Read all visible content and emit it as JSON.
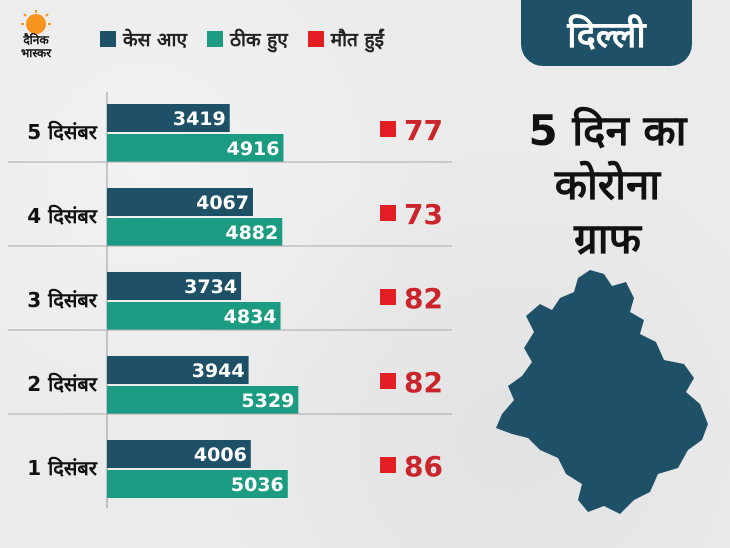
{
  "brand": {
    "line1": "दैनिक",
    "line2": "भास्कर",
    "accent": "#f7941d"
  },
  "legend": [
    {
      "label": "केस आए",
      "color": "#1e5168"
    },
    {
      "label": "ठीक हुए",
      "color": "#1b9c82"
    },
    {
      "label": "मौत हुईं",
      "color": "#e31e24"
    }
  ],
  "panel": {
    "city": "दिल्ली",
    "title_lines": [
      "5 दिन का",
      "कोरोना",
      "ग्राफ"
    ],
    "color": "#1e5168"
  },
  "chart_data": {
    "type": "bar",
    "orientation": "horizontal",
    "categories": [
      "5 दिसंबर",
      "4 दिसंबर",
      "3 दिसंबर",
      "2 दिसंबर",
      "1 दिसंबर"
    ],
    "series": [
      {
        "name": "केस आए",
        "color": "#1e5168",
        "values": [
          3419,
          4067,
          3734,
          3944,
          4006
        ]
      },
      {
        "name": "ठीक हुए",
        "color": "#1b9c82",
        "values": [
          4916,
          4882,
          4834,
          5329,
          5036
        ]
      },
      {
        "name": "मौत हुईं",
        "color": "#e31e24",
        "values": [
          77,
          73,
          82,
          82,
          86
        ],
        "display": "marker"
      }
    ],
    "xlim": [
      0,
      5500
    ],
    "grid": false,
    "legend": "top"
  }
}
